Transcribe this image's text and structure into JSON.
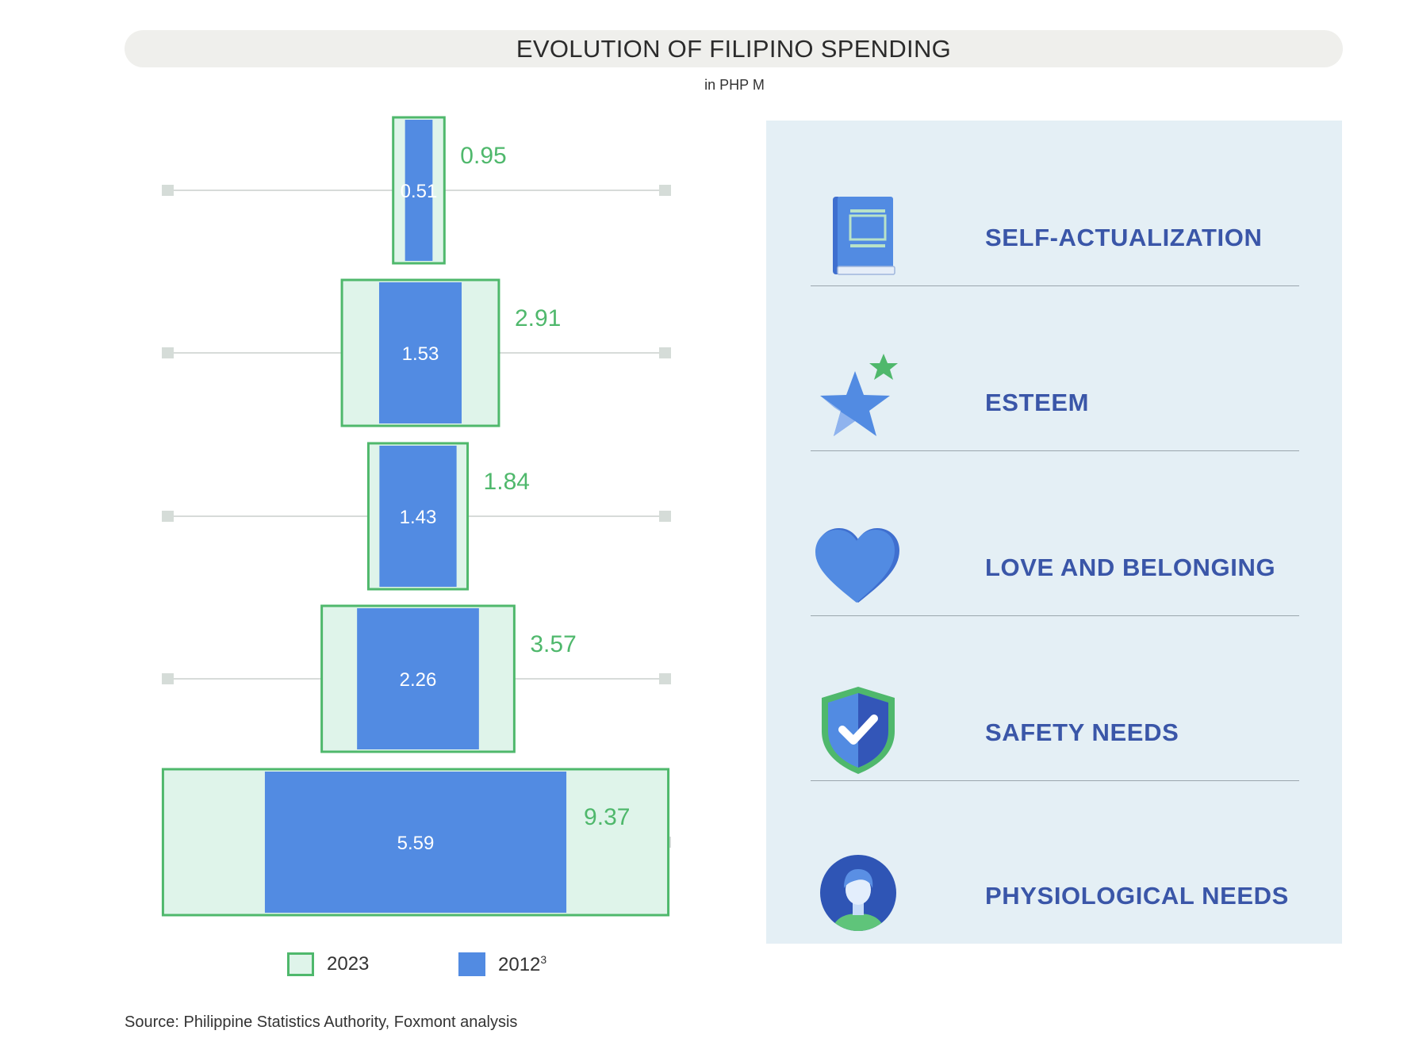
{
  "colors": {
    "outer_fill": "#dff4ea",
    "outer_stroke": "#4fb86c",
    "inner_fill": "#528be2",
    "value_green": "#4fb86c",
    "label_blue": "#3a56a8",
    "panel_bg": "#e4eff5"
  },
  "chart_data": {
    "type": "bar",
    "title": "EVOLUTION OF FILIPINO SPENDING",
    "subtitle": "in PHP M",
    "orientation": "horizontal-centered",
    "categories": [
      "SELF-ACTUALIZATION",
      "ESTEEM",
      "LOVE AND BELONGING",
      "SAFETY NEEDS",
      "PHYSIOLOGICAL NEEDS"
    ],
    "series": [
      {
        "name": "2023",
        "values": [
          0.95,
          2.91,
          1.84,
          3.57,
          9.37
        ],
        "labels": [
          "0.95",
          "2.91",
          "1.84",
          "3.57",
          "9.37"
        ]
      },
      {
        "name": "2012",
        "footnote": "3",
        "values": [
          0.51,
          1.53,
          1.43,
          2.26,
          5.59
        ],
        "labels": [
          "0.51",
          "1.53",
          "1.43",
          "2.26",
          "5.59"
        ]
      }
    ],
    "source": "Source: Philippine Statistics Authority, Foxmont analysis"
  },
  "panel": {
    "levels": [
      {
        "label": "SELF-ACTUALIZATION",
        "icon": "book-icon"
      },
      {
        "label": "ESTEEM",
        "icon": "star-icon"
      },
      {
        "label": "LOVE AND BELONGING",
        "icon": "heart-icon"
      },
      {
        "label": "SAFETY NEEDS",
        "icon": "shield-check-icon"
      },
      {
        "label": "PHYSIOLOGICAL NEEDS",
        "icon": "person-icon"
      }
    ]
  },
  "legend": {
    "item_2023": "2023",
    "item_2012": "2012",
    "item_2012_sup": "3"
  }
}
